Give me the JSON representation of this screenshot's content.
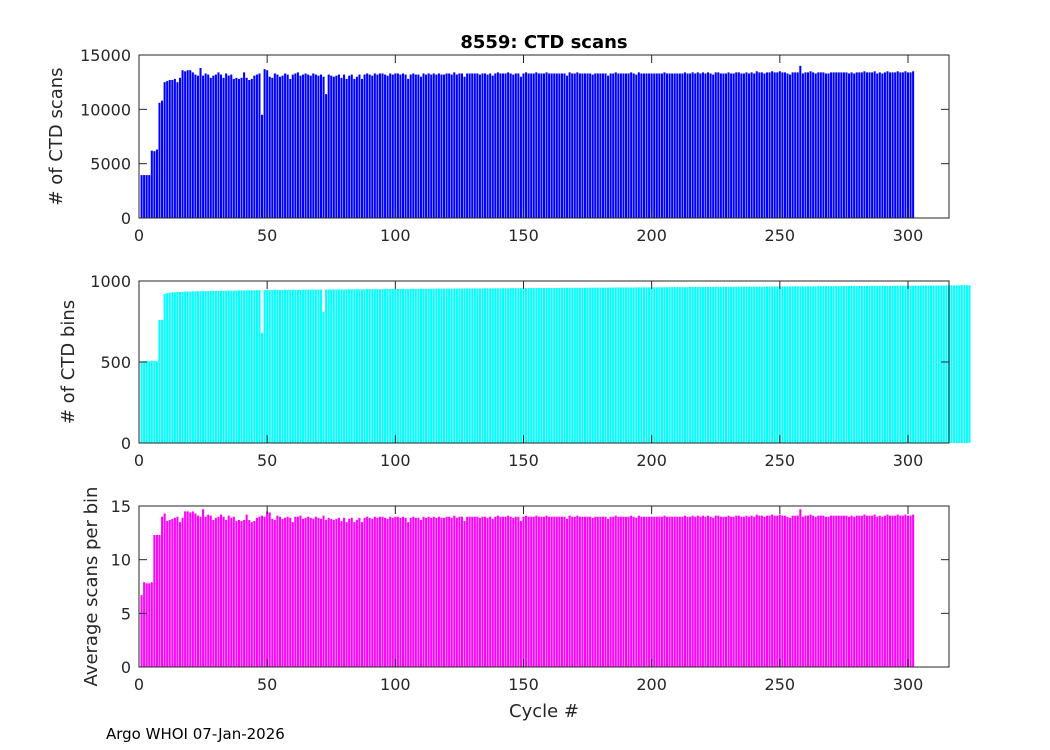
{
  "chart_data": [
    {
      "type": "bar",
      "panel": "top",
      "title": "8559: CTD scans",
      "ylabel": "# of CTD scans",
      "xlabel": "",
      "xlim": [
        0,
        316
      ],
      "ylim": [
        0,
        15000
      ],
      "xticks": [
        0,
        50,
        100,
        150,
        200,
        250,
        300
      ],
      "yticks": [
        0,
        5000,
        10000,
        15000
      ],
      "color": "#0000ff",
      "x_start": 1,
      "values": [
        3950,
        3950,
        3950,
        3950,
        6200,
        6150,
        6300,
        10600,
        10800,
        12500,
        12600,
        12700,
        12700,
        12800,
        12500,
        12900,
        13600,
        13500,
        13600,
        13600,
        13400,
        13200,
        13100,
        13800,
        13100,
        13300,
        13200,
        12900,
        13100,
        13200,
        13400,
        13200,
        12900,
        13300,
        13100,
        13200,
        12800,
        12900,
        12800,
        12900,
        13400,
        12900,
        12700,
        12800,
        13100,
        13200,
        13300,
        9500,
        13700,
        13600,
        13000,
        12900,
        13300,
        13200,
        13000,
        13100,
        13300,
        13200,
        12800,
        13200,
        13300,
        13400,
        13100,
        13200,
        13300,
        13200,
        13100,
        13300,
        13200,
        13100,
        13200,
        13000,
        11400,
        13200,
        13100,
        13000,
        13100,
        13200,
        12900,
        13200,
        12800,
        13100,
        13200,
        12800,
        13000,
        13200,
        12800,
        13200,
        13300,
        13200,
        13100,
        13300,
        13200,
        13300,
        13300,
        13200,
        13100,
        13300,
        13200,
        13300,
        13300,
        13200,
        13300,
        13200,
        12800,
        13200,
        13300,
        13200,
        13200,
        13000,
        13300,
        13200,
        13300,
        13200,
        13300,
        13200,
        13300,
        13200,
        13200,
        13300,
        13300,
        13200,
        13400,
        13200,
        13300,
        13300,
        13000,
        13300,
        13300,
        13300,
        13300,
        13300,
        13200,
        13300,
        13300,
        13200,
        13300,
        13100,
        13300,
        13400,
        13300,
        13300,
        13300,
        13400,
        13300,
        13200,
        13300,
        13300,
        13000,
        13300,
        13400,
        13300,
        13300,
        13300,
        13400,
        13300,
        13300,
        13300,
        13400,
        13300,
        13300,
        13300,
        13300,
        13300,
        13300,
        13300,
        13100,
        13400,
        13300,
        13300,
        13400,
        13300,
        13300,
        13300,
        13300,
        13300,
        13200,
        13300,
        13300,
        13300,
        13300,
        13300,
        13100,
        13300,
        13300,
        13400,
        13300,
        13300,
        13300,
        13300,
        13300,
        13400,
        13300,
        13200,
        13400,
        13300,
        13300,
        13300,
        13300,
        13300,
        13300,
        13300,
        13300,
        13300,
        13400,
        13300,
        13300,
        13300,
        13300,
        13300,
        13300,
        13300,
        13400,
        13300,
        13300,
        13400,
        13300,
        13400,
        13300,
        13400,
        13300,
        13400,
        13300,
        13200,
        13400,
        13400,
        13300,
        13300,
        13300,
        13400,
        13300,
        13300,
        13400,
        13400,
        13300,
        13300,
        13400,
        13300,
        13400,
        13300,
        13500,
        13400,
        13400,
        13300,
        13400,
        13400,
        13500,
        13400,
        13400,
        13500,
        13400,
        13400,
        13300,
        13200,
        13400,
        13400,
        13400,
        14000,
        13300,
        13400,
        13400,
        13500,
        13400,
        13300,
        13400,
        13400,
        13400,
        13300,
        13300,
        13400,
        13400,
        13400,
        13400,
        13400,
        13400,
        13400,
        13300,
        13400,
        13300,
        13400,
        13400,
        13400,
        13500,
        13400,
        13400,
        13400,
        13500,
        13300,
        13400,
        13300,
        13400,
        13500,
        13400,
        13400,
        13400,
        13500,
        13400,
        13400,
        13500,
        13400,
        13400,
        13500
      ]
    },
    {
      "type": "bar",
      "panel": "middle",
      "title": "",
      "ylabel": "# of CTD bins",
      "xlabel": "",
      "xlim": [
        0,
        316
      ],
      "ylim": [
        0,
        1000
      ],
      "xticks": [
        0,
        50,
        100,
        150,
        200,
        250,
        300
      ],
      "yticks": [
        0,
        500,
        1000
      ],
      "color": "#00ffff",
      "x_start": 1,
      "values": [
        500,
        505,
        508,
        505,
        508,
        508,
        505,
        760,
        760,
        920,
        925,
        928,
        930,
        930,
        932,
        932,
        932,
        935,
        935,
        935,
        936,
        936,
        937,
        937,
        938,
        938,
        938,
        938,
        939,
        939,
        940,
        940,
        940,
        940,
        941,
        941,
        941,
        942,
        942,
        942,
        942,
        943,
        943,
        943,
        943,
        943,
        944,
        680,
        944,
        944,
        944,
        945,
        945,
        945,
        945,
        945,
        945,
        946,
        946,
        946,
        946,
        946,
        946,
        946,
        947,
        947,
        947,
        947,
        947,
        947,
        947,
        810,
        947,
        948,
        948,
        948,
        948,
        948,
        948,
        948,
        948,
        949,
        949,
        949,
        949,
        949,
        949,
        949,
        950,
        950,
        950,
        950,
        950,
        950,
        950,
        950,
        951,
        951,
        951,
        951,
        951,
        951,
        951,
        951,
        951,
        952,
        952,
        952,
        952,
        952,
        952,
        952,
        952,
        952,
        953,
        953,
        953,
        953,
        953,
        953,
        953,
        953,
        953,
        953,
        954,
        954,
        954,
        954,
        954,
        954,
        954,
        954,
        954,
        954,
        955,
        955,
        955,
        955,
        955,
        955,
        955,
        955,
        955,
        955,
        956,
        956,
        956,
        956,
        956,
        956,
        956,
        956,
        956,
        956,
        957,
        957,
        957,
        957,
        957,
        957,
        957,
        957,
        957,
        957,
        958,
        958,
        958,
        958,
        958,
        958,
        958,
        958,
        958,
        958,
        959,
        959,
        959,
        959,
        959,
        959,
        959,
        959,
        959,
        959,
        960,
        960,
        960,
        960,
        960,
        960,
        960,
        960,
        960,
        960,
        961,
        961,
        961,
        961,
        961,
        961,
        961,
        961,
        961,
        961,
        962,
        962,
        962,
        962,
        962,
        962,
        962,
        962,
        962,
        962,
        963,
        963,
        963,
        963,
        963,
        963,
        963,
        963,
        963,
        963,
        964,
        964,
        964,
        964,
        964,
        964,
        964,
        964,
        964,
        964,
        965,
        965,
        965,
        965,
        965,
        965,
        965,
        965,
        965,
        965,
        966,
        966,
        966,
        966,
        966,
        966,
        966,
        966,
        966,
        966,
        967,
        967,
        967,
        967,
        967,
        967,
        967,
        967,
        967,
        967,
        968,
        968,
        968,
        968,
        968,
        968,
        968,
        968,
        968,
        968,
        969,
        969,
        969,
        969,
        969,
        969,
        969,
        969,
        969,
        969,
        970,
        970,
        970,
        970,
        970,
        970,
        970,
        970,
        970,
        970,
        971,
        971,
        971,
        971,
        971,
        971,
        971,
        971,
        971,
        971,
        972,
        972,
        972,
        972,
        972,
        972,
        972,
        972,
        972,
        972,
        973,
        973,
        973,
        973,
        973,
        973,
        974,
        974,
        974,
        974
      ]
    },
    {
      "type": "bar",
      "panel": "bottom",
      "title": "",
      "ylabel": "Average scans per bin",
      "xlabel": "Cycle #",
      "xlim": [
        0,
        316
      ],
      "ylim": [
        0,
        15
      ],
      "xticks": [
        0,
        50,
        100,
        150,
        200,
        250,
        300
      ],
      "yticks": [
        0,
        5,
        10,
        15
      ],
      "color": "#ff00ff",
      "x_start": 1,
      "values": [
        6.7,
        7.9,
        7.8,
        7.8,
        7.9,
        12.3,
        12.3,
        12.3,
        14.0,
        14.3,
        13.6,
        13.7,
        13.8,
        13.9,
        14.0,
        13.5,
        13.9,
        14.5,
        14.5,
        14.4,
        14.5,
        14.3,
        14.1,
        14.0,
        14.7,
        14.0,
        14.2,
        14.1,
        13.7,
        13.9,
        14.0,
        14.2,
        14.0,
        13.7,
        14.1,
        13.9,
        14.0,
        13.6,
        13.7,
        13.6,
        13.7,
        14.2,
        13.7,
        13.5,
        13.6,
        13.9,
        14.0,
        14.1,
        14.0,
        14.5,
        14.4,
        13.8,
        13.7,
        14.1,
        14.0,
        13.8,
        13.9,
        14.0,
        13.9,
        13.5,
        14.0,
        14.0,
        14.1,
        13.8,
        13.9,
        14.0,
        13.9,
        13.8,
        14.0,
        13.9,
        13.8,
        14.1,
        13.7,
        13.9,
        13.8,
        13.7,
        13.8,
        13.9,
        13.6,
        13.9,
        13.5,
        13.8,
        13.9,
        13.5,
        13.7,
        13.9,
        13.5,
        13.9,
        14.0,
        13.9,
        13.8,
        14.0,
        13.9,
        14.0,
        14.0,
        13.9,
        13.8,
        14.0,
        13.9,
        14.0,
        14.0,
        13.9,
        14.0,
        13.9,
        13.5,
        13.9,
        14.0,
        13.9,
        13.9,
        13.7,
        14.0,
        13.9,
        14.0,
        13.9,
        14.0,
        13.9,
        14.0,
        13.9,
        13.9,
        14.0,
        14.0,
        13.9,
        14.1,
        13.9,
        14.0,
        14.0,
        13.6,
        14.0,
        14.0,
        14.0,
        14.0,
        14.0,
        13.9,
        14.0,
        14.0,
        13.9,
        14.0,
        13.8,
        14.0,
        14.1,
        14.0,
        14.0,
        14.0,
        14.1,
        14.0,
        13.9,
        14.0,
        14.0,
        13.6,
        14.0,
        14.1,
        14.0,
        14.0,
        14.0,
        14.1,
        14.0,
        14.0,
        14.0,
        14.1,
        14.0,
        14.0,
        14.0,
        14.0,
        14.0,
        14.0,
        14.0,
        13.8,
        14.1,
        14.0,
        14.0,
        14.1,
        14.0,
        14.0,
        14.0,
        14.0,
        14.0,
        13.9,
        14.0,
        14.0,
        14.0,
        14.0,
        14.0,
        13.8,
        14.0,
        14.0,
        14.1,
        14.0,
        14.0,
        14.0,
        14.0,
        14.0,
        14.1,
        14.0,
        13.9,
        14.1,
        14.0,
        14.0,
        14.0,
        14.0,
        14.0,
        14.0,
        14.0,
        14.0,
        14.0,
        14.1,
        14.0,
        14.0,
        14.0,
        14.0,
        14.0,
        14.0,
        14.0,
        14.1,
        14.0,
        14.0,
        14.1,
        14.0,
        14.1,
        14.0,
        14.1,
        14.0,
        14.1,
        14.0,
        13.9,
        14.1,
        14.1,
        14.0,
        14.0,
        14.0,
        14.1,
        14.0,
        14.0,
        14.1,
        14.1,
        14.0,
        14.0,
        14.1,
        14.0,
        14.1,
        14.0,
        14.2,
        14.1,
        14.1,
        14.0,
        14.1,
        14.1,
        14.2,
        14.1,
        14.1,
        14.2,
        14.1,
        14.1,
        14.0,
        13.9,
        14.1,
        14.1,
        14.1,
        14.7,
        14.0,
        14.1,
        14.1,
        14.2,
        14.1,
        14.0,
        14.1,
        14.1,
        14.1,
        14.0,
        14.0,
        14.1,
        14.1,
        14.1,
        14.1,
        14.1,
        14.1,
        14.1,
        14.0,
        14.1,
        14.0,
        14.1,
        14.1,
        14.1,
        14.2,
        14.1,
        14.1,
        14.1,
        14.2,
        14.0,
        14.1,
        14.0,
        14.1,
        14.2,
        14.1,
        14.1,
        14.1,
        14.2,
        14.1,
        14.1,
        14.2,
        14.1,
        14.1,
        14.2
      ]
    }
  ],
  "footer": "Argo WHOI 07-Jan-2026"
}
